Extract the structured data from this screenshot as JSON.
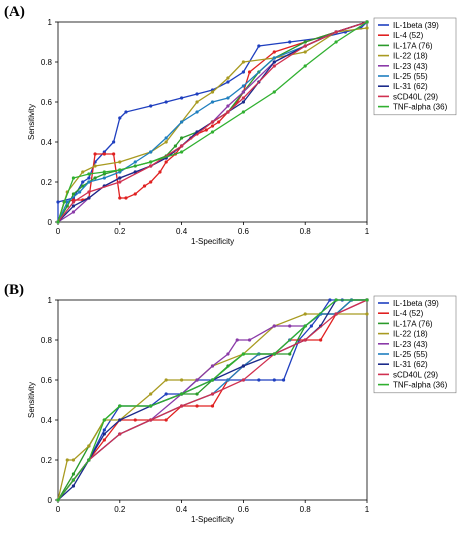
{
  "chart_data": [
    {
      "panel_label": "(A)",
      "type": "line",
      "xlabel": "1-Specificity",
      "ylabel": "Sensitivity",
      "xlim": [
        0,
        1
      ],
      "ylim": [
        0,
        1
      ],
      "xticks": [
        "0",
        "0.2",
        "0.4",
        "0.6",
        "0.8",
        "1"
      ],
      "yticks": [
        "0",
        "0.2",
        "0.4",
        "0.6",
        "0.8",
        "1"
      ],
      "legend_position": "right",
      "series": [
        {
          "name": "IL-1beta (39)",
          "color": "#1f3fbf",
          "x": [
            0,
            0,
            0.05,
            0.08,
            0.1,
            0.12,
            0.15,
            0.18,
            0.2,
            0.22,
            0.3,
            0.35,
            0.4,
            0.45,
            0.5,
            0.55,
            0.6,
            0.65,
            0.75,
            0.85,
            0.93,
            0.98,
            1
          ],
          "y": [
            0,
            0.1,
            0.12,
            0.2,
            0.22,
            0.3,
            0.35,
            0.4,
            0.52,
            0.55,
            0.58,
            0.6,
            0.62,
            0.64,
            0.66,
            0.7,
            0.75,
            0.88,
            0.9,
            0.92,
            0.95,
            0.97,
            1
          ]
        },
        {
          "name": "IL-4 (52)",
          "color": "#e02020",
          "x": [
            0,
            0.02,
            0.05,
            0.08,
            0.1,
            0.12,
            0.15,
            0.18,
            0.2,
            0.22,
            0.25,
            0.28,
            0.3,
            0.33,
            0.35,
            0.38,
            0.4,
            0.43,
            0.45,
            0.48,
            0.5,
            0.52,
            0.55,
            0.58,
            0.6,
            0.62,
            0.7,
            0.8,
            0.9,
            1
          ],
          "y": [
            0,
            0.1,
            0.11,
            0.11,
            0.12,
            0.34,
            0.34,
            0.34,
            0.12,
            0.12,
            0.14,
            0.18,
            0.2,
            0.25,
            0.3,
            0.34,
            0.38,
            0.42,
            0.44,
            0.46,
            0.48,
            0.5,
            0.55,
            0.6,
            0.65,
            0.75,
            0.85,
            0.9,
            0.95,
            1
          ]
        },
        {
          "name": "IL-17A (76)",
          "color": "#2a9a2a",
          "x": [
            0,
            0.03,
            0.05,
            0.08,
            0.1,
            0.12,
            0.15,
            0.2,
            0.25,
            0.3,
            0.35,
            0.38,
            0.4,
            0.45,
            0.5,
            0.55,
            0.6,
            0.65,
            0.7,
            0.8,
            0.9,
            1
          ],
          "y": [
            0,
            0.08,
            0.14,
            0.18,
            0.2,
            0.22,
            0.24,
            0.26,
            0.28,
            0.3,
            0.33,
            0.38,
            0.42,
            0.45,
            0.5,
            0.55,
            0.65,
            0.75,
            0.82,
            0.9,
            0.95,
            1
          ]
        },
        {
          "name": "IL-22 (18)",
          "color": "#a89a20",
          "x": [
            0,
            0.03,
            0.08,
            0.12,
            0.2,
            0.3,
            0.35,
            0.4,
            0.45,
            0.5,
            0.55,
            0.6,
            0.7,
            0.8,
            0.9,
            1
          ],
          "y": [
            0,
            0.15,
            0.25,
            0.28,
            0.3,
            0.35,
            0.4,
            0.5,
            0.6,
            0.65,
            0.72,
            0.8,
            0.82,
            0.85,
            0.95,
            0.97
          ]
        },
        {
          "name": "IL-23 (43)",
          "color": "#8a3aa8",
          "x": [
            0,
            0.05,
            0.1,
            0.15,
            0.2,
            0.25,
            0.3,
            0.35,
            0.4,
            0.45,
            0.5,
            0.55,
            0.6,
            0.7,
            0.8,
            0.9,
            1
          ],
          "y": [
            0,
            0.05,
            0.12,
            0.18,
            0.22,
            0.25,
            0.28,
            0.32,
            0.38,
            0.45,
            0.5,
            0.58,
            0.65,
            0.8,
            0.88,
            0.95,
            1
          ]
        },
        {
          "name": "IL-25 (55)",
          "color": "#1f7fbf",
          "x": [
            0,
            0.03,
            0.07,
            0.1,
            0.15,
            0.2,
            0.25,
            0.3,
            0.35,
            0.4,
            0.45,
            0.5,
            0.55,
            0.6,
            0.7,
            0.8,
            0.9,
            1
          ],
          "y": [
            0,
            0.1,
            0.15,
            0.2,
            0.22,
            0.25,
            0.3,
            0.35,
            0.42,
            0.5,
            0.55,
            0.6,
            0.62,
            0.68,
            0.82,
            0.88,
            0.95,
            1
          ]
        },
        {
          "name": "IL-31 (62)",
          "color": "#1a2a8a",
          "x": [
            0,
            0.05,
            0.1,
            0.15,
            0.2,
            0.25,
            0.3,
            0.35,
            0.4,
            0.45,
            0.5,
            0.55,
            0.6,
            0.65,
            0.7,
            0.8,
            0.9,
            1
          ],
          "y": [
            0,
            0.08,
            0.12,
            0.18,
            0.22,
            0.25,
            0.28,
            0.32,
            0.38,
            0.45,
            0.5,
            0.55,
            0.6,
            0.7,
            0.8,
            0.88,
            0.95,
            1
          ]
        },
        {
          "name": "sCD40L (29)",
          "color": "#d03050",
          "x": [
            0,
            0.05,
            0.1,
            0.2,
            0.3,
            0.4,
            0.5,
            0.55,
            0.6,
            0.7,
            0.8,
            0.9,
            1
          ],
          "y": [
            0,
            0.1,
            0.15,
            0.2,
            0.28,
            0.38,
            0.5,
            0.55,
            0.62,
            0.78,
            0.88,
            0.95,
            1
          ]
        },
        {
          "name": "TNF-alpha (36)",
          "color": "#30b030",
          "x": [
            0,
            0.02,
            0.05,
            0.1,
            0.15,
            0.2,
            0.3,
            0.4,
            0.5,
            0.6,
            0.7,
            0.8,
            0.9,
            1
          ],
          "y": [
            0,
            0.1,
            0.22,
            0.24,
            0.25,
            0.26,
            0.3,
            0.35,
            0.45,
            0.55,
            0.65,
            0.78,
            0.9,
            1
          ]
        }
      ]
    },
    {
      "panel_label": "(B)",
      "type": "line",
      "xlabel": "1-Specificity",
      "ylabel": "Sensitivity",
      "xlim": [
        0,
        1
      ],
      "ylim": [
        0,
        1
      ],
      "xticks": [
        "0",
        "0.2",
        "0.4",
        "0.6",
        "0.8",
        "1"
      ],
      "yticks": [
        "0",
        "0.2",
        "0.4",
        "0.6",
        "0.8",
        "1"
      ],
      "legend_position": "right",
      "series": [
        {
          "name": "IL-1beta (39)",
          "color": "#1f3fbf",
          "x": [
            0,
            0.05,
            0.1,
            0.15,
            0.2,
            0.3,
            0.35,
            0.4,
            0.45,
            0.5,
            0.55,
            0.6,
            0.65,
            0.7,
            0.73,
            0.78,
            0.82,
            0.85,
            0.88,
            0.92,
            1
          ],
          "y": [
            0,
            0.1,
            0.2,
            0.35,
            0.47,
            0.47,
            0.53,
            0.53,
            0.6,
            0.6,
            0.6,
            0.6,
            0.6,
            0.6,
            0.6,
            0.8,
            0.87,
            0.93,
            1,
            1,
            1
          ]
        },
        {
          "name": "IL-4 (52)",
          "color": "#e02020",
          "x": [
            0,
            0.05,
            0.1,
            0.15,
            0.2,
            0.25,
            0.3,
            0.35,
            0.4,
            0.45,
            0.5,
            0.55,
            0.6,
            0.65,
            0.7,
            0.75,
            0.8,
            0.85,
            0.9,
            0.95,
            1
          ],
          "y": [
            0,
            0.1,
            0.2,
            0.3,
            0.4,
            0.4,
            0.4,
            0.4,
            0.47,
            0.47,
            0.47,
            0.6,
            0.67,
            0.73,
            0.73,
            0.8,
            0.8,
            0.8,
            0.93,
            1,
            1
          ]
        },
        {
          "name": "IL-17A (76)",
          "color": "#2a9a2a",
          "x": [
            0,
            0.05,
            0.1,
            0.15,
            0.2,
            0.3,
            0.4,
            0.45,
            0.5,
            0.55,
            0.6,
            0.65,
            0.7,
            0.75,
            0.8,
            0.85,
            0.9,
            0.95,
            1
          ],
          "y": [
            0,
            0.13,
            0.27,
            0.4,
            0.47,
            0.47,
            0.53,
            0.53,
            0.6,
            0.67,
            0.73,
            0.73,
            0.73,
            0.73,
            0.87,
            0.93,
            0.93,
            1,
            1
          ]
        },
        {
          "name": "IL-22 (18)",
          "color": "#a89a20",
          "x": [
            0,
            0.03,
            0.05,
            0.1,
            0.15,
            0.2,
            0.3,
            0.35,
            0.4,
            0.45,
            0.5,
            0.6,
            0.7,
            0.8,
            0.85,
            0.9,
            1
          ],
          "y": [
            0,
            0.2,
            0.2,
            0.27,
            0.4,
            0.4,
            0.53,
            0.6,
            0.6,
            0.6,
            0.67,
            0.73,
            0.87,
            0.93,
            0.93,
            0.93,
            0.93
          ]
        },
        {
          "name": "IL-23 (43)",
          "color": "#8a3aa8",
          "x": [
            0,
            0.05,
            0.1,
            0.2,
            0.3,
            0.4,
            0.45,
            0.5,
            0.55,
            0.58,
            0.62,
            0.7,
            0.75,
            0.8,
            0.85,
            0.9,
            1
          ],
          "y": [
            0,
            0.1,
            0.2,
            0.33,
            0.4,
            0.53,
            0.6,
            0.67,
            0.73,
            0.8,
            0.8,
            0.87,
            0.87,
            0.87,
            0.93,
            0.93,
            1
          ]
        },
        {
          "name": "IL-25 (55)",
          "color": "#1f7fbf",
          "x": [
            0,
            0.05,
            0.1,
            0.2,
            0.3,
            0.4,
            0.5,
            0.55,
            0.6,
            0.65,
            0.7,
            0.75,
            0.8,
            0.85,
            0.9,
            0.95,
            1
          ],
          "y": [
            0,
            0.1,
            0.2,
            0.33,
            0.4,
            0.47,
            0.53,
            0.6,
            0.67,
            0.73,
            0.73,
            0.8,
            0.87,
            0.93,
            0.93,
            1,
            1
          ]
        },
        {
          "name": "IL-31 (62)",
          "color": "#1a2a8a",
          "x": [
            0,
            0.05,
            0.1,
            0.15,
            0.2,
            0.3,
            0.4,
            0.5,
            0.6,
            0.7,
            0.8,
            0.85,
            0.9,
            1
          ],
          "y": [
            0,
            0.07,
            0.2,
            0.33,
            0.4,
            0.47,
            0.53,
            0.6,
            0.67,
            0.73,
            0.8,
            0.87,
            1,
            1
          ]
        },
        {
          "name": "sCD40L (29)",
          "color": "#d03050",
          "x": [
            0,
            0.05,
            0.1,
            0.2,
            0.3,
            0.4,
            0.5,
            0.6,
            0.7,
            0.8,
            0.9,
            1
          ],
          "y": [
            0,
            0.1,
            0.2,
            0.33,
            0.4,
            0.47,
            0.53,
            0.6,
            0.73,
            0.8,
            0.93,
            1
          ]
        },
        {
          "name": "TNF-alpha (36)",
          "color": "#30b030",
          "x": [
            0,
            0.05,
            0.1,
            0.15,
            0.2,
            0.3,
            0.4,
            0.5,
            0.6,
            0.7,
            0.8,
            0.9,
            1
          ],
          "y": [
            0,
            0.1,
            0.2,
            0.4,
            0.47,
            0.47,
            0.53,
            0.6,
            0.73,
            0.73,
            0.87,
            1,
            1
          ]
        }
      ]
    }
  ]
}
